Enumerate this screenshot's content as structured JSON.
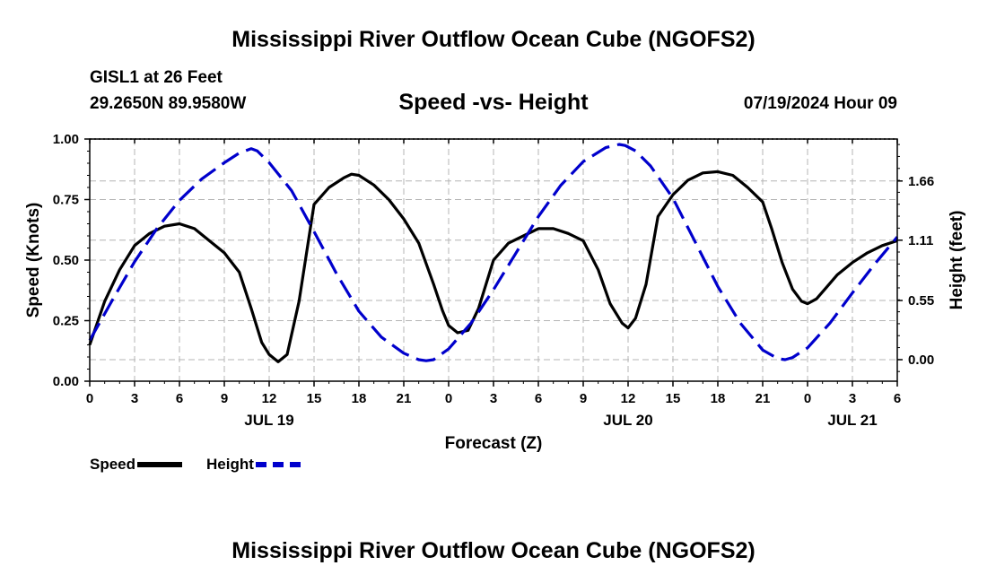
{
  "header": {
    "title": "Mississippi River Outflow Ocean Cube (NGOFS2)",
    "station": "GISL1 at 26 Feet",
    "coords": "29.2650N  89.9580W",
    "subtitle": "Speed -vs- Height",
    "datetime": "07/19/2024 Hour 09"
  },
  "footer": {
    "title": "Mississippi River Outflow Ocean Cube (NGOFS2)"
  },
  "legend": [
    {
      "label": "Speed",
      "color": "#000000",
      "style": "solid"
    },
    {
      "label": "Height",
      "color": "#0000cc",
      "style": "dashed"
    }
  ],
  "chart_data": {
    "type": "line",
    "xlabel": "Forecast (Z)",
    "ylabel_left": "Speed (Knots)",
    "ylabel_right": "Height (feet)",
    "x_range": [
      0,
      54
    ],
    "ylim_left": [
      0,
      1
    ],
    "ylim_right": [
      -0.2,
      2.05
    ],
    "grid": true,
    "x_ticks": [
      {
        "x": 0,
        "label": "0"
      },
      {
        "x": 3,
        "label": "3"
      },
      {
        "x": 6,
        "label": "6"
      },
      {
        "x": 9,
        "label": "9"
      },
      {
        "x": 12,
        "label": "12"
      },
      {
        "x": 15,
        "label": "15"
      },
      {
        "x": 18,
        "label": "18"
      },
      {
        "x": 21,
        "label": "21"
      },
      {
        "x": 24,
        "label": "0"
      },
      {
        "x": 27,
        "label": "3"
      },
      {
        "x": 30,
        "label": "6"
      },
      {
        "x": 33,
        "label": "9"
      },
      {
        "x": 36,
        "label": "12"
      },
      {
        "x": 39,
        "label": "15"
      },
      {
        "x": 42,
        "label": "18"
      },
      {
        "x": 45,
        "label": "21"
      },
      {
        "x": 48,
        "label": "0"
      },
      {
        "x": 51,
        "label": "3"
      },
      {
        "x": 54,
        "label": "6"
      }
    ],
    "date_labels": [
      {
        "x": 12,
        "label": "JUL 19"
      },
      {
        "x": 36,
        "label": "JUL 20"
      },
      {
        "x": 51,
        "label": "JUL 21"
      }
    ],
    "y_ticks_left": [
      {
        "v": 0.0,
        "label": "0.00"
      },
      {
        "v": 0.25,
        "label": "0.25"
      },
      {
        "v": 0.5,
        "label": "0.50"
      },
      {
        "v": 0.75,
        "label": "0.75"
      },
      {
        "v": 1.0,
        "label": "1.00"
      }
    ],
    "y_ticks_right": [
      {
        "v": 0.0,
        "label": "0.00"
      },
      {
        "v": 0.55,
        "label": "0.55"
      },
      {
        "v": 1.11,
        "label": "1.11"
      },
      {
        "v": 1.66,
        "label": "1.66"
      }
    ],
    "series": [
      {
        "name": "Speed",
        "axis": "left",
        "color": "#000000",
        "style": "solid",
        "x": [
          0,
          1,
          2,
          3,
          4,
          5,
          6,
          7,
          8,
          9,
          10,
          10.8,
          11.5,
          12,
          12.6,
          13.2,
          14,
          15,
          16,
          17,
          17.5,
          18,
          19,
          20,
          21,
          22,
          23,
          23.6,
          24,
          24.6,
          25.3,
          26,
          27,
          28,
          29,
          30,
          31,
          32,
          33,
          34,
          34.8,
          35.6,
          36,
          36.5,
          37.2,
          38,
          39,
          40,
          41,
          42,
          43,
          44,
          45,
          45.6,
          46.3,
          47,
          47.6,
          48,
          48.6,
          49.3,
          50,
          51,
          52,
          53,
          54
        ],
        "values": [
          0.15,
          0.33,
          0.46,
          0.56,
          0.61,
          0.64,
          0.65,
          0.63,
          0.58,
          0.53,
          0.45,
          0.3,
          0.16,
          0.11,
          0.08,
          0.11,
          0.33,
          0.73,
          0.8,
          0.84,
          0.855,
          0.85,
          0.81,
          0.75,
          0.67,
          0.57,
          0.4,
          0.29,
          0.23,
          0.2,
          0.21,
          0.3,
          0.5,
          0.57,
          0.6,
          0.63,
          0.63,
          0.61,
          0.58,
          0.46,
          0.32,
          0.24,
          0.22,
          0.26,
          0.4,
          0.68,
          0.77,
          0.83,
          0.86,
          0.865,
          0.85,
          0.8,
          0.74,
          0.63,
          0.49,
          0.38,
          0.33,
          0.32,
          0.34,
          0.39,
          0.44,
          0.49,
          0.53,
          0.56,
          0.58
        ]
      },
      {
        "name": "Height",
        "axis": "right",
        "color": "#0000cc",
        "style": "dashed",
        "x": [
          0,
          1.5,
          3,
          4.5,
          6,
          7.5,
          9,
          10,
          10.8,
          11.2,
          12,
          13.5,
          15,
          16.5,
          18,
          19.5,
          21,
          22,
          22.5,
          23,
          24,
          25.5,
          27,
          28.5,
          30,
          31.5,
          33,
          34.5,
          35.4,
          35.8,
          36.5,
          37.5,
          39,
          40.5,
          42,
          43.5,
          45,
          46,
          46.5,
          47,
          48,
          49.5,
          51,
          52.5,
          54
        ],
        "values": [
          0.18,
          0.55,
          0.91,
          1.22,
          1.48,
          1.68,
          1.83,
          1.92,
          1.96,
          1.94,
          1.83,
          1.57,
          1.19,
          0.8,
          0.45,
          0.21,
          0.06,
          0.0,
          -0.01,
          0.0,
          0.1,
          0.34,
          0.65,
          0.99,
          1.33,
          1.62,
          1.84,
          1.97,
          2.0,
          1.99,
          1.94,
          1.8,
          1.5,
          1.09,
          0.68,
          0.34,
          0.09,
          0.01,
          0.0,
          0.02,
          0.11,
          0.34,
          0.62,
          0.89,
          1.14
        ]
      }
    ]
  }
}
